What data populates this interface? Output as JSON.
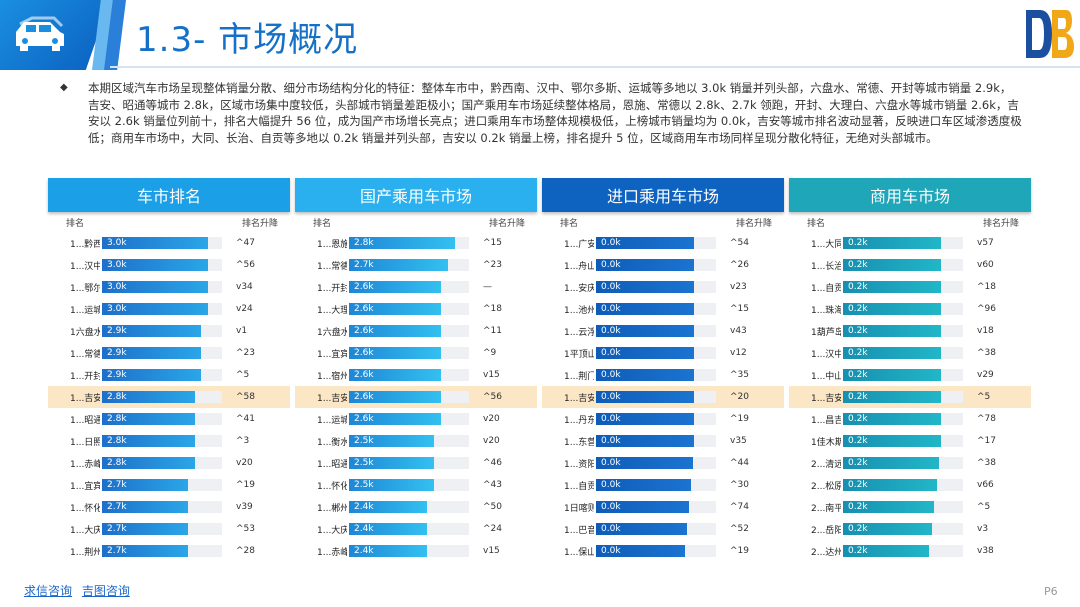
{
  "header": {
    "title": "1.3- 市场概况",
    "icon": "car-icon",
    "logo": "db-logo"
  },
  "summary": "本期区域汽车市场呈现整体销量分散、细分市场结构分化的特征：整体车市中，黔西南、汉中、鄂尔多斯、运城等多地以 3.0k 销量并列头部，六盘水、常德、开封等城市销量 2.9k，吉安、昭通等城市 2.8k，区域市场集中度较低，头部城市销量差距极小；国产乘用车市场延续整体格局，恩施、常德以 2.8k、2.7k 领跑，开封、大理白、六盘水等城市销量 2.6k，吉安以 2.6k 销量位列前十，排名大幅提升 56 位，成为国产市场增长亮点；进口乘用车市场整体规模极低，上榜城市销量均为 0.0k，吉安等城市排名波动显著，反映进口车区域渗透度极低；商用车市场中，大同、长治、自贡等多地以 0.2k 销量并列头部，吉安以 0.2k 销量上榜，排名提升 5 位，区域商用车市场同样呈现分散化特征，无绝对头部城市。",
  "colors": {
    "panel0_head": "#1b9fe6",
    "panel1_head": "#2ab0ee",
    "panel2_head": "#0e63c0",
    "panel3_head": "#1fa6b8",
    "highlight_row": "#fbe6c6"
  },
  "panels": [
    {
      "title": "车市排名",
      "col_rank": "排名",
      "col_change": "排名升降",
      "bar_color_a": "#1e6fc9",
      "bar_color_b": "#2aa6e8",
      "rows": [
        {
          "name": "1...黔西南...",
          "label": "3.0k",
          "value": 3.0,
          "change": "^47"
        },
        {
          "name": "1...汉中市",
          "label": "3.0k",
          "value": 3.0,
          "change": "^56"
        },
        {
          "name": "1...鄂尔多...",
          "label": "3.0k",
          "value": 3.0,
          "change": "v34"
        },
        {
          "name": "1...运城市",
          "label": "3.0k",
          "value": 3.0,
          "change": "v24"
        },
        {
          "name": "1六盘水市",
          "label": "2.9k",
          "value": 2.9,
          "change": "v1"
        },
        {
          "name": "1...常德市",
          "label": "2.9k",
          "value": 2.9,
          "change": "^23"
        },
        {
          "name": "1...开封市",
          "label": "2.9k",
          "value": 2.9,
          "change": "^5"
        },
        {
          "name": "1...吉安市",
          "label": "2.8k",
          "value": 2.8,
          "change": "^58",
          "highlight": true
        },
        {
          "name": "1...昭通市",
          "label": "2.8k",
          "value": 2.8,
          "change": "^41"
        },
        {
          "name": "1...日照市",
          "label": "2.8k",
          "value": 2.8,
          "change": "^3"
        },
        {
          "name": "1...赤峰市",
          "label": "2.8k",
          "value": 2.8,
          "change": "v20"
        },
        {
          "name": "1...宜宾市",
          "label": "2.7k",
          "value": 2.7,
          "change": "^19"
        },
        {
          "name": "1...怀化市",
          "label": "2.7k",
          "value": 2.7,
          "change": "v39"
        },
        {
          "name": "1...大庆市",
          "label": "2.7k",
          "value": 2.7,
          "change": "^53"
        },
        {
          "name": "1...荆州市",
          "label": "2.7k",
          "value": 2.7,
          "change": "^28"
        }
      ]
    },
    {
      "title": "国产乘用车市场",
      "col_rank": "排名",
      "col_change": "排名升降",
      "bar_color_a": "#1e86d6",
      "bar_color_b": "#33c0f0",
      "rows": [
        {
          "name": "1...恩施土...",
          "label": "2.8k",
          "value": 2.8,
          "change": "^15"
        },
        {
          "name": "1...常德市",
          "label": "2.7k",
          "value": 2.7,
          "change": "^23"
        },
        {
          "name": "1...开封市",
          "label": "2.6k",
          "value": 2.6,
          "change": "—"
        },
        {
          "name": "1...大理白...",
          "label": "2.6k",
          "value": 2.6,
          "change": "^18"
        },
        {
          "name": "1六盘水市",
          "label": "2.6k",
          "value": 2.6,
          "change": "^11"
        },
        {
          "name": "1...宜宾市",
          "label": "2.6k",
          "value": 2.6,
          "change": "^9"
        },
        {
          "name": "1...宿州市",
          "label": "2.6k",
          "value": 2.6,
          "change": "v15"
        },
        {
          "name": "1...吉安市",
          "label": "2.6k",
          "value": 2.6,
          "change": "^56",
          "highlight": true
        },
        {
          "name": "1...运城市",
          "label": "2.6k",
          "value": 2.6,
          "change": "v20"
        },
        {
          "name": "1...衡水市",
          "label": "2.5k",
          "value": 2.5,
          "change": "v20"
        },
        {
          "name": "1...昭通市",
          "label": "2.5k",
          "value": 2.5,
          "change": "^46"
        },
        {
          "name": "1...怀化市",
          "label": "2.5k",
          "value": 2.5,
          "change": "^43"
        },
        {
          "name": "1...郴州市",
          "label": "2.4k",
          "value": 2.4,
          "change": "^50"
        },
        {
          "name": "1...大庆市",
          "label": "2.4k",
          "value": 2.4,
          "change": "^24"
        },
        {
          "name": "1...赤峰市",
          "label": "2.4k",
          "value": 2.4,
          "change": "v15"
        }
      ]
    },
    {
      "title": "进口乘用车市场",
      "col_rank": "排名",
      "col_change": "排名升降",
      "bar_color_a": "#0e5cb8",
      "bar_color_b": "#1b74d0",
      "rows": [
        {
          "name": "1...广安市",
          "label": "0.0k",
          "value": 0.0,
          "change": "^54"
        },
        {
          "name": "1...舟山市",
          "label": "0.0k",
          "value": 0.0,
          "change": "^26"
        },
        {
          "name": "1...安庆市",
          "label": "0.0k",
          "value": 0.0,
          "change": "v23"
        },
        {
          "name": "1...池州市",
          "label": "0.0k",
          "value": 0.0,
          "change": "^15"
        },
        {
          "name": "1...云浮市",
          "label": "0.0k",
          "value": 0.0,
          "change": "v43"
        },
        {
          "name": "1平顶山市",
          "label": "0.0k",
          "value": 0.0,
          "change": "v12"
        },
        {
          "name": "1...荆门市",
          "label": "0.0k",
          "value": 0.0,
          "change": "^35"
        },
        {
          "name": "1...吉安市",
          "label": "0.0k",
          "value": 0.0,
          "change": "^20",
          "highlight": true
        },
        {
          "name": "1...丹东市",
          "label": "0.0k",
          "value": 0.0,
          "change": "^19"
        },
        {
          "name": "1...东营市",
          "label": "0.0k",
          "value": 0.0,
          "change": "v35"
        },
        {
          "name": "1...资阳市",
          "label": "0.0k",
          "value": 0.0,
          "change": "^44"
        },
        {
          "name": "1...自贡市",
          "label": "0.0k",
          "value": 0.0,
          "change": "^30"
        },
        {
          "name": "1日喀则市",
          "label": "0.0k",
          "value": 0.0,
          "change": "^74"
        },
        {
          "name": "1...巴音郭...",
          "label": "0.0k",
          "value": 0.0,
          "change": "^52"
        },
        {
          "name": "1...保山市",
          "label": "0.0k",
          "value": 0.0,
          "change": "^19"
        }
      ]
    },
    {
      "title": "商用车市场",
      "col_rank": "排名",
      "col_change": "排名升降",
      "bar_color_a": "#178fb0",
      "bar_color_b": "#22b6c8",
      "rows": [
        {
          "name": "1...大同市",
          "label": "0.2k",
          "value": 0.2,
          "change": "v57"
        },
        {
          "name": "1...长治市",
          "label": "0.2k",
          "value": 0.2,
          "change": "v60"
        },
        {
          "name": "1...自贡市",
          "label": "0.2k",
          "value": 0.2,
          "change": "^18"
        },
        {
          "name": "1...珠海市",
          "label": "0.2k",
          "value": 0.2,
          "change": "^96"
        },
        {
          "name": "1葫芦岛市",
          "label": "0.2k",
          "value": 0.2,
          "change": "v18"
        },
        {
          "name": "1...汉中市",
          "label": "0.2k",
          "value": 0.2,
          "change": "^38"
        },
        {
          "name": "1...中山市",
          "label": "0.2k",
          "value": 0.2,
          "change": "v29"
        },
        {
          "name": "1...吉安市",
          "label": "0.2k",
          "value": 0.2,
          "change": "^5",
          "highlight": true
        },
        {
          "name": "1...昌吉回...",
          "label": "0.2k",
          "value": 0.2,
          "change": "^78"
        },
        {
          "name": "1佳木斯市",
          "label": "0.2k",
          "value": 0.2,
          "change": "^17"
        },
        {
          "name": "2...清远市",
          "label": "0.2k",
          "value": 0.2,
          "change": "^38"
        },
        {
          "name": "2...松原市",
          "label": "0.2k",
          "value": 0.2,
          "change": "v66"
        },
        {
          "name": "2...南平市",
          "label": "0.2k",
          "value": 0.2,
          "change": "^5"
        },
        {
          "name": "2...岳阳市",
          "label": "0.2k",
          "value": 0.2,
          "change": "v3"
        },
        {
          "name": "2...达州市",
          "label": "0.2k",
          "value": 0.2,
          "change": "v38"
        }
      ]
    }
  ],
  "footer": {
    "link1": "求信咨询",
    "link2": "吉图咨询",
    "page": "P6"
  }
}
